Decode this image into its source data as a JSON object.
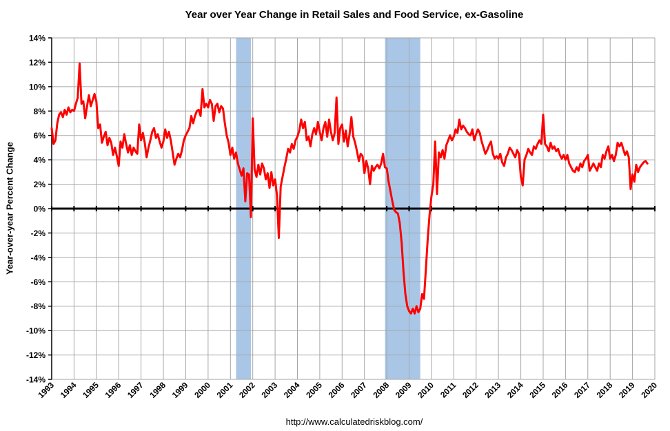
{
  "page": {
    "footer_url": "http://www.calculatedriskblog.com/"
  },
  "chart_data": {
    "type": "line",
    "title": "Year over Year Change in Retail Sales and Food Service, ex-Gasoline",
    "xlabel": "",
    "ylabel": "Year-over-year Percent Change",
    "ylim": [
      -14,
      14
    ],
    "ytick_step": 2,
    "y_tick_labels": [
      "14%",
      "12%",
      "10%",
      "8%",
      "6%",
      "4%",
      "2%",
      "0%",
      "-2%",
      "-4%",
      "-6%",
      "-8%",
      "-10%",
      "-12%",
      "-14%"
    ],
    "xlim": [
      1993,
      2020
    ],
    "x_tick_labels": [
      "1993",
      "1994",
      "1995",
      "1996",
      "1997",
      "1998",
      "1999",
      "2000",
      "2001",
      "2002",
      "2003",
      "2004",
      "2005",
      "2006",
      "2007",
      "2008",
      "2009",
      "2010",
      "2011",
      "2012",
      "2013",
      "2014",
      "2015",
      "2016",
      "2017",
      "2018",
      "2019",
      "2020"
    ],
    "grid": true,
    "legend": "none",
    "line_color": "#FF0000",
    "zero_line_color": "#000000",
    "grid_color": "#A6A6A6",
    "recession_band_color": "#A9C6E7",
    "recession_bands": [
      {
        "start": 2001.25,
        "end": 2001.92
      },
      {
        "start": 2007.92,
        "end": 2009.5
      }
    ],
    "series": [
      {
        "name": "Retail Sales and Food Service ex-Gasoline, YoY percent change",
        "start": "1993-01",
        "frequency": "monthly",
        "values": [
          6.6,
          5.3,
          5.6,
          7.0,
          7.7,
          7.9,
          7.5,
          8.1,
          7.7,
          8.3,
          7.9,
          8.1,
          8.0,
          8.6,
          9.1,
          11.9,
          8.6,
          8.8,
          7.4,
          8.4,
          9.3,
          8.4,
          8.9,
          9.4,
          8.8,
          6.6,
          6.9,
          5.4,
          5.9,
          6.3,
          5.2,
          5.8,
          5.4,
          4.4,
          5.0,
          4.3,
          3.5,
          5.5,
          5.0,
          6.1,
          5.3,
          4.6,
          5.2,
          4.4,
          5.0,
          4.7,
          4.5,
          6.9,
          5.6,
          6.2,
          5.4,
          4.2,
          5.0,
          5.6,
          6.3,
          6.6,
          5.8,
          6.1,
          5.5,
          5.0,
          5.5,
          6.5,
          5.8,
          6.3,
          5.6,
          4.6,
          3.6,
          4.1,
          4.5,
          4.2,
          4.8,
          5.6,
          6.0,
          6.3,
          6.6,
          7.6,
          7.0,
          7.6,
          8.0,
          8.1,
          7.6,
          9.8,
          8.3,
          8.6,
          8.3,
          8.9,
          8.6,
          7.2,
          8.4,
          8.6,
          7.9,
          8.4,
          8.2,
          7.0,
          6.0,
          5.4,
          4.4,
          5.0,
          4.1,
          4.6,
          3.7,
          3.2,
          2.7,
          3.3,
          0.6,
          2.9,
          2.8,
          -0.7,
          7.4,
          3.2,
          2.6,
          3.6,
          2.8,
          3.7,
          3.3,
          2.4,
          2.9,
          1.7,
          3.0,
          1.9,
          2.4,
          1.1,
          -2.4,
          1.8,
          2.6,
          3.4,
          4.1,
          4.9,
          4.6,
          5.3,
          4.9,
          5.6,
          5.9,
          6.4,
          7.3,
          6.6,
          7.1,
          5.6,
          5.9,
          5.1,
          6.1,
          6.6,
          6.1,
          7.1,
          6.3,
          5.6,
          6.6,
          7.1,
          5.9,
          7.3,
          6.3,
          5.6,
          6.2,
          9.1,
          5.3,
          6.6,
          6.9,
          5.5,
          6.4,
          5.1,
          6.1,
          7.5,
          5.9,
          5.4,
          4.7,
          3.9,
          4.5,
          4.3,
          2.9,
          3.9,
          3.3,
          2.0,
          3.5,
          3.1,
          3.4,
          3.6,
          3.3,
          3.7,
          4.5,
          3.4,
          3.3,
          2.2,
          1.4,
          0.6,
          -0.1,
          -0.3,
          -0.4,
          -1.2,
          -2.8,
          -5.2,
          -7.0,
          -8.0,
          -8.4,
          -8.6,
          -8.2,
          -8.6,
          -8.0,
          -8.5,
          -8.2,
          -7.0,
          -7.4,
          -5.0,
          -2.5,
          -0.5,
          1.0,
          2.0,
          5.5,
          1.2,
          4.6,
          4.2,
          4.8,
          4.1,
          5.2,
          5.6,
          6.0,
          5.6,
          5.9,
          6.5,
          6.2,
          7.3,
          6.5,
          6.8,
          6.6,
          6.3,
          6.1,
          6.0,
          6.5,
          5.6,
          6.1,
          6.5,
          6.2,
          5.5,
          5.0,
          4.5,
          4.8,
          5.2,
          5.5,
          4.5,
          4.1,
          4.3,
          4.1,
          4.5,
          3.8,
          3.5,
          4.2,
          4.5,
          5.0,
          4.8,
          4.5,
          4.2,
          4.8,
          4.5,
          2.6,
          1.9,
          4.0,
          4.4,
          4.9,
          4.6,
          4.4,
          5.1,
          4.9,
          5.3,
          5.6,
          5.3,
          7.7,
          5.3,
          5.1,
          4.7,
          5.4,
          4.9,
          5.1,
          4.7,
          4.9,
          4.4,
          4.1,
          4.4,
          4.0,
          4.4,
          3.7,
          3.4,
          3.1,
          3.0,
          3.4,
          3.1,
          3.7,
          3.4,
          3.9,
          4.1,
          4.4,
          3.1,
          3.4,
          3.7,
          3.4,
          3.1,
          3.7,
          3.4,
          4.4,
          4.1,
          4.7,
          5.1,
          4.1,
          4.4,
          3.9,
          4.4,
          5.4,
          5.1,
          5.4,
          4.9,
          4.4,
          4.7,
          4.2,
          1.6,
          2.8,
          2.2,
          3.6,
          3.0,
          3.4,
          3.6,
          3.8,
          3.9,
          3.7
        ]
      }
    ]
  }
}
